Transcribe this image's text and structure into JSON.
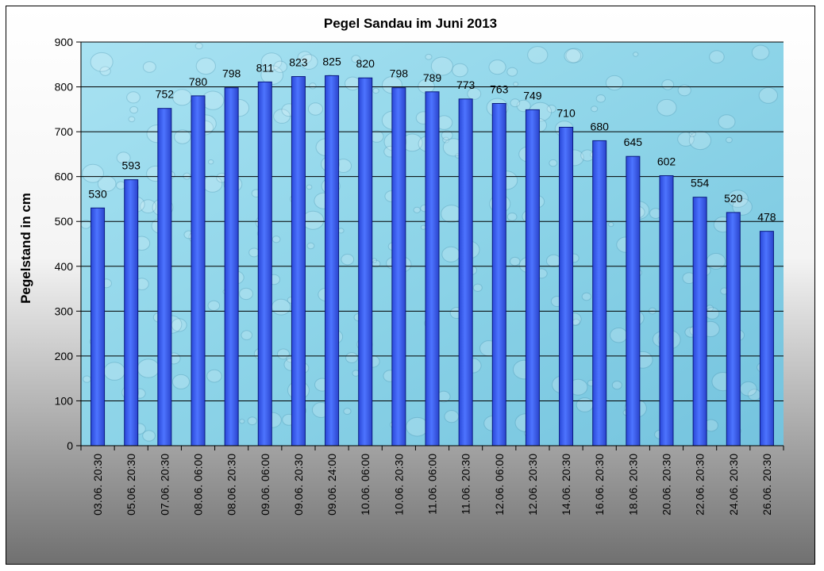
{
  "chart_data": {
    "type": "bar",
    "title": "Pegel Sandau im Juni 2013",
    "xlabel": "",
    "ylabel": "Pegelstand in cm",
    "ylim": [
      0,
      900
    ],
    "yticks": [
      0,
      100,
      200,
      300,
      400,
      500,
      600,
      700,
      800,
      900
    ],
    "grid": true,
    "legend": "none",
    "categories": [
      "03.06. 20:30",
      "05.06. 20:30",
      "07.06. 20:30",
      "08.06. 06:00",
      "08.06. 20:30",
      "09.06. 06:00",
      "09.06. 20:30",
      "09.06. 24:00",
      "10.06. 06:00",
      "10.06. 20:30",
      "11.06. 06:00",
      "11.06. 20:30",
      "12.06. 06:00",
      "12.06. 20:30",
      "14.06. 20:30",
      "16.06. 20:30",
      "18.06. 20:30",
      "20.06. 20:30",
      "22.06. 20:30",
      "24.06. 20:30",
      "26.06. 20:30"
    ],
    "values": [
      530,
      593,
      752,
      780,
      798,
      811,
      823,
      825,
      820,
      798,
      789,
      773,
      763,
      749,
      710,
      680,
      645,
      602,
      554,
      520,
      478
    ],
    "colors": {
      "bar": "#3a5ff0",
      "bar_edge": "#0a1a80",
      "plot_bg": "#8fd6ea",
      "frame_top": "#ffffff",
      "frame_bottom": "#707070"
    }
  }
}
